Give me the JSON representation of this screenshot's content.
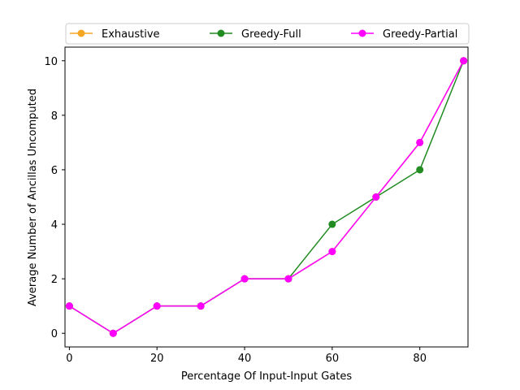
{
  "chart_data": {
    "type": "line",
    "title": "",
    "xlabel": "Percentage Of Input-Input Gates",
    "ylabel": "Average Number of Ancillas Uncomputed",
    "x": [
      0,
      10,
      20,
      30,
      40,
      50,
      60,
      70,
      80,
      90
    ],
    "xlim": [
      -1,
      91
    ],
    "ylim": [
      -0.5,
      10.5
    ],
    "xticks": [
      0,
      20,
      40,
      60,
      80
    ],
    "yticks": [
      0,
      2,
      4,
      6,
      8,
      10
    ],
    "grid": false,
    "legend_position": "top, above plot, 3 columns",
    "series": [
      {
        "name": "Exhaustive",
        "color": "#f5a623",
        "marker": "circle",
        "values": [
          1,
          0,
          1,
          1,
          2,
          2,
          3,
          5,
          7,
          10
        ]
      },
      {
        "name": "Greedy-Full",
        "color": "#228b22",
        "marker": "circle",
        "values": [
          1,
          0,
          1,
          1,
          2,
          2,
          4,
          5,
          6,
          10
        ]
      },
      {
        "name": "Greedy-Partial",
        "color": "#ff00ff",
        "marker": "circle",
        "values": [
          1,
          0,
          1,
          1,
          2,
          2,
          3,
          5,
          7,
          10
        ]
      }
    ]
  }
}
